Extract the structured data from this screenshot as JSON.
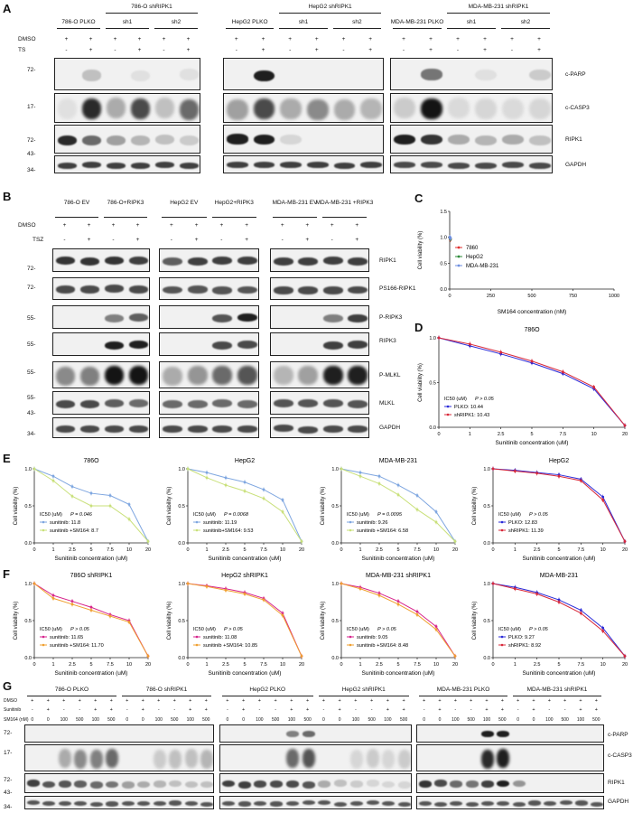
{
  "panel_letters": {
    "A": "A",
    "B": "B",
    "C": "C",
    "D": "D",
    "E": "E",
    "F": "F",
    "G": "G"
  },
  "A": {
    "groups": [
      "786-O PLKO",
      "786-O shRIPK1",
      "HepG2 PLKO",
      "HepG2 shRIPK1",
      "MDA-MB-231 PLKO",
      "MDA-MB-231 shRIPK1"
    ],
    "sublabels": [
      "sh1",
      "sh2"
    ],
    "row_names": [
      "DMSO",
      "TS"
    ],
    "plus": "+",
    "minus": "-",
    "mw": [
      "72-",
      "17-",
      "72-",
      "43-",
      "34-"
    ],
    "blots": [
      "c-PARP",
      "c-CASP3",
      "RIPK1",
      "GAPDH"
    ]
  },
  "B": {
    "groups": [
      "786-O EV",
      "786-O+RIPK3",
      "HepG2 EV",
      "HepG2+RIPK3",
      "MDA-MB-231 EV",
      "MDA-MB-231 +RIPK3"
    ],
    "row_names": [
      "DMSO",
      "TSZ"
    ],
    "mw": [
      "72-",
      "72-",
      "55-",
      "55-",
      "55-",
      "55-",
      "43-",
      "34-"
    ],
    "blots": [
      "RIPK1",
      "PS166-RIPK1",
      "P-RIPK3",
      "RIPK3",
      "P-MLKL",
      "MLKL",
      "GAPDH"
    ]
  },
  "G": {
    "groups": [
      "786-O PLKO",
      "786-O shRIPK1",
      "HepG2 PLKO",
      "HepG2 shRIPK1",
      "MDA-MB-231 PLKO",
      "MDA-MB-231 shRIPK1"
    ],
    "row_names": [
      "DMSO",
      "Sunitinib",
      "SM164 (nM)"
    ],
    "doses": [
      "0",
      "0",
      "100",
      "500",
      "100",
      "500"
    ],
    "mw": [
      "72-",
      "17-",
      "72-",
      "43-",
      "34-"
    ],
    "blots": [
      "c-PARP",
      "c-CASP3",
      "RIPK1",
      "GAPDH"
    ]
  },
  "chart_data": [
    {
      "id": "C",
      "type": "line",
      "title": "",
      "xlabel": "SM164 concentration (nM)",
      "ylabel": "Cell viability (%)",
      "xlim": [
        0,
        1000
      ],
      "xticks": [
        "0",
        "250",
        "500",
        "750",
        "1000"
      ],
      "ylim": [
        0,
        1.5
      ],
      "yticks": [
        "0.0",
        "0.5",
        "1.0",
        "1.5"
      ],
      "legend": "top-left",
      "series": [
        {
          "name": "7860",
          "color": "#e0302f",
          "x": [
            0,
            10,
            50,
            100,
            500,
            1000
          ],
          "values": [
            1.0,
            0.98,
            0.97,
            0.95,
            0.95,
            0.96
          ]
        },
        {
          "name": "HepG2",
          "color": "#2e8b3a",
          "x": [
            0,
            10,
            50,
            100,
            500,
            1000
          ],
          "values": [
            1.0,
            0.99,
            0.98,
            0.97,
            0.96,
            0.97
          ]
        },
        {
          "name": "MDA-MB-231",
          "color": "#6f8fe0",
          "x": [
            0,
            10,
            50,
            100,
            500,
            1000
          ],
          "values": [
            1.0,
            1.0,
            0.99,
            0.98,
            0.98,
            0.99
          ]
        }
      ]
    },
    {
      "id": "D",
      "type": "line",
      "title": "786O",
      "xlabel": "Sunitinib concentration (uM)",
      "ylabel": "Cell viability (%)",
      "categories": [
        "0",
        "1",
        "2.5",
        "5",
        "7.5",
        "10",
        "20"
      ],
      "ylim": [
        0,
        1
      ],
      "yticks": [
        "0.0",
        "0.5",
        "1.0"
      ],
      "ic50_header": "IC50 (uM)",
      "pvalue": "P > 0.05",
      "series": [
        {
          "name": "PLKO: 10.44",
          "color": "#2a2ad8",
          "values": [
            1.0,
            0.91,
            0.82,
            0.72,
            0.6,
            0.43,
            0.02
          ]
        },
        {
          "name": "shRIPK1: 10.43",
          "color": "#d8283a",
          "values": [
            1.0,
            0.93,
            0.84,
            0.74,
            0.62,
            0.45,
            0.02
          ]
        }
      ]
    },
    {
      "id": "E1",
      "type": "line",
      "title": "786O",
      "xlabel": "Sunitinib concentration (uM)",
      "ylabel": "Cell viability (%)",
      "categories": [
        "0",
        "1",
        "2.5",
        "5",
        "7.5",
        "10",
        "20"
      ],
      "ylim": [
        0,
        1
      ],
      "yticks": [
        "0.0",
        "0.5",
        "1.0"
      ],
      "ic50_header": "IC50 (uM)",
      "pvalue": "P = 0.046",
      "series": [
        {
          "name": "sunitinib: 11.8",
          "color": "#7ea6e0",
          "values": [
            1.0,
            0.9,
            0.76,
            0.67,
            0.64,
            0.52,
            0.02
          ]
        },
        {
          "name": "sunitinib +SM164: 8.7",
          "color": "#c9e07a",
          "values": [
            1.0,
            0.84,
            0.63,
            0.5,
            0.5,
            0.32,
            0.02
          ]
        }
      ]
    },
    {
      "id": "E2",
      "type": "line",
      "title": "HepG2",
      "xlabel": "Sunitinib concentration (uM)",
      "ylabel": "Cell viability (%)",
      "categories": [
        "0",
        "1",
        "2.5",
        "5",
        "7.5",
        "10",
        "20"
      ],
      "ylim": [
        0,
        1
      ],
      "yticks": [
        "0.0",
        "0.5",
        "1.0"
      ],
      "ic50_header": "IC50 (uM)",
      "pvalue": "P = 0.0068",
      "series": [
        {
          "name": "sunitinib: 11.19",
          "color": "#7ea6e0",
          "values": [
            1.0,
            0.95,
            0.88,
            0.82,
            0.72,
            0.58,
            0.02
          ]
        },
        {
          "name": "sunitinib+SM164: 9.53",
          "color": "#c9e07a",
          "values": [
            1.0,
            0.88,
            0.78,
            0.7,
            0.6,
            0.42,
            0.02
          ]
        }
      ]
    },
    {
      "id": "E3",
      "type": "line",
      "title": "MDA-MB-231",
      "xlabel": "Sunitinib concentration (uM)",
      "ylabel": "Cell viability (%)",
      "categories": [
        "0",
        "1",
        "2.5",
        "5",
        "7.5",
        "10",
        "20"
      ],
      "ylim": [
        0,
        1
      ],
      "yticks": [
        "0.0",
        "0.5",
        "1.0"
      ],
      "ic50_header": "IC50 (uM)",
      "pvalue": "P = 0.0095",
      "series": [
        {
          "name": "sunitinib: 9.26",
          "color": "#7ea6e0",
          "values": [
            1.0,
            0.95,
            0.9,
            0.78,
            0.64,
            0.42,
            0.02
          ]
        },
        {
          "name": "sunitinib +SM164: 6.58",
          "color": "#c9e07a",
          "values": [
            1.0,
            0.9,
            0.8,
            0.65,
            0.45,
            0.28,
            0.02
          ]
        }
      ]
    },
    {
      "id": "E4",
      "type": "line",
      "title": "HepG2",
      "xlabel": "Sunitinib concentration (uM)",
      "ylabel": "Cell viability (%)",
      "categories": [
        "0",
        "1",
        "2.5",
        "5",
        "7.5",
        "10",
        "20"
      ],
      "ylim": [
        0,
        1
      ],
      "yticks": [
        "0.0",
        "0.5",
        "1.0"
      ],
      "ic50_header": "IC50 (uM)",
      "pvalue": "P > 0.05",
      "series": [
        {
          "name": "PLKO: 12.83",
          "color": "#2a2ad8",
          "values": [
            1.0,
            0.98,
            0.95,
            0.92,
            0.86,
            0.62,
            0.02
          ]
        },
        {
          "name": "shRIPK1: 11.39",
          "color": "#d8283a",
          "values": [
            1.0,
            0.97,
            0.94,
            0.9,
            0.84,
            0.58,
            0.02
          ]
        }
      ]
    },
    {
      "id": "F1",
      "type": "line",
      "title": "786O shRIPK1",
      "xlabel": "Sunitinib concentration (uM)",
      "ylabel": "Cell viability (%)",
      "categories": [
        "0",
        "1",
        "2.5",
        "5",
        "7.5",
        "10",
        "20"
      ],
      "ylim": [
        0,
        1
      ],
      "yticks": [
        "0.0",
        "0.5",
        "1.0"
      ],
      "ic50_header": "IC50 (uM)",
      "pvalue": "P > 0.05",
      "series": [
        {
          "name": "sunitinib: 11.65",
          "color": "#d6238c",
          "values": [
            1.0,
            0.84,
            0.76,
            0.68,
            0.58,
            0.5,
            0.02
          ]
        },
        {
          "name": "sunitinib +SM164: 11.70",
          "color": "#f0a030",
          "values": [
            1.0,
            0.8,
            0.72,
            0.64,
            0.56,
            0.48,
            0.02
          ]
        }
      ]
    },
    {
      "id": "F2",
      "type": "line",
      "title": "HepG2 shRIPK1",
      "xlabel": "Sunitinib concentration (uM)",
      "ylabel": "Cell viability (%)",
      "categories": [
        "0",
        "1",
        "2.5",
        "5",
        "7.5",
        "10",
        "20"
      ],
      "ylim": [
        0,
        1
      ],
      "yticks": [
        "0.0",
        "0.5",
        "1.0"
      ],
      "ic50_header": "IC50 (uM)",
      "pvalue": "P > 0.05",
      "series": [
        {
          "name": "sunitinib: 11.08",
          "color": "#d6238c",
          "values": [
            1.0,
            0.97,
            0.93,
            0.88,
            0.8,
            0.6,
            0.02
          ]
        },
        {
          "name": "sunitinib +SM164: 10.85",
          "color": "#f0a030",
          "values": [
            1.0,
            0.96,
            0.91,
            0.86,
            0.78,
            0.57,
            0.02
          ]
        }
      ]
    },
    {
      "id": "F3",
      "type": "line",
      "title": "MDA-MB-231 shRIPK1",
      "xlabel": "Sunitinib concentration (uM)",
      "ylabel": "Cell viability (%)",
      "categories": [
        "0",
        "1",
        "2.5",
        "5",
        "7.5",
        "10",
        "20"
      ],
      "ylim": [
        0,
        1
      ],
      "yticks": [
        "0.0",
        "0.5",
        "1.0"
      ],
      "ic50_header": "IC50 (uM)",
      "pvalue": "P > 0.05",
      "series": [
        {
          "name": "sunitinib: 9.05",
          "color": "#d6238c",
          "values": [
            1.0,
            0.95,
            0.87,
            0.76,
            0.62,
            0.42,
            0.02
          ]
        },
        {
          "name": "sunitinib +SM164: 8.48",
          "color": "#f0a030",
          "values": [
            1.0,
            0.93,
            0.84,
            0.72,
            0.58,
            0.38,
            0.02
          ]
        }
      ]
    },
    {
      "id": "F4",
      "type": "line",
      "title": "MDA-MB-231",
      "xlabel": "Sunitinib concentration (uM)",
      "ylabel": "Cell viability (%)",
      "categories": [
        "0",
        "1",
        "2.5",
        "5",
        "7.5",
        "10",
        "20"
      ],
      "ylim": [
        0,
        1
      ],
      "yticks": [
        "0.0",
        "0.5",
        "1.0"
      ],
      "ic50_header": "IC50 (uM)",
      "pvalue": "P > 0.05",
      "series": [
        {
          "name": "PLKO: 9.27",
          "color": "#2a2ad8",
          "values": [
            1.0,
            0.95,
            0.88,
            0.78,
            0.64,
            0.4,
            0.02
          ]
        },
        {
          "name": "shRIPK1: 8.92",
          "color": "#d8283a",
          "values": [
            1.0,
            0.93,
            0.86,
            0.75,
            0.6,
            0.36,
            0.02
          ]
        }
      ]
    }
  ]
}
